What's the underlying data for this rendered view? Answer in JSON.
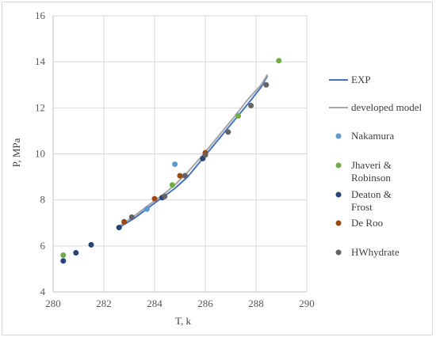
{
  "chart_data": {
    "type": "scatter",
    "title": "",
    "xlabel": "T, k",
    "ylabel": "P, MPa",
    "xlim": [
      280,
      290
    ],
    "ylim": [
      4,
      16
    ],
    "xticks": [
      "280",
      "282",
      "284",
      "286",
      "288",
      "290"
    ],
    "yticks": [
      "4",
      "6",
      "8",
      "10",
      "12",
      "14",
      "16"
    ],
    "grid": true,
    "legend_position": "right",
    "series": [
      {
        "name": "EXP",
        "kind": "line",
        "color": "#4472c4",
        "x": [
          282.6,
          283.2,
          283.8,
          284.3,
          284.8,
          285.3,
          285.9,
          286.5,
          287.1,
          287.7,
          288.2,
          288.45
        ],
        "y": [
          6.8,
          7.2,
          7.7,
          8.1,
          8.5,
          9.0,
          9.8,
          10.6,
          11.4,
          12.2,
          12.9,
          13.4
        ]
      },
      {
        "name": "developed model",
        "kind": "line",
        "color": "#a5a5a5",
        "x": [
          282.6,
          283.2,
          283.8,
          284.3,
          284.8,
          285.3,
          285.9,
          286.5,
          287.1,
          287.7,
          288.2,
          288.45
        ],
        "y": [
          6.85,
          7.3,
          7.8,
          8.2,
          8.65,
          9.2,
          9.95,
          10.75,
          11.55,
          12.4,
          13.0,
          13.45
        ]
      },
      {
        "name": "Nakamura",
        "kind": "scatter",
        "color": "#5b9bd5",
        "x": [
          283.7,
          284.8
        ],
        "y": [
          7.6,
          9.55
        ]
      },
      {
        "name": "Jhaveri & Robinson",
        "kind": "scatter",
        "color": "#70ad47",
        "x": [
          280.4,
          284.7,
          287.3,
          288.9
        ],
        "y": [
          5.6,
          8.65,
          11.65,
          14.05
        ]
      },
      {
        "name": "Deaton & Frost",
        "kind": "scatter",
        "color": "#264478",
        "x": [
          280.4,
          280.9,
          281.5,
          282.6,
          284.3,
          285.9
        ],
        "y": [
          5.35,
          5.7,
          6.05,
          6.8,
          8.1,
          9.8
        ]
      },
      {
        "name": "De Roo",
        "kind": "scatter",
        "color": "#9e480e",
        "x": [
          282.8,
          284.0,
          285.0,
          286.0
        ],
        "y": [
          7.05,
          8.05,
          9.05,
          10.05
        ]
      },
      {
        "name": "HWhydrate",
        "kind": "scatter",
        "color": "#636363",
        "x": [
          283.1,
          284.4,
          285.2,
          286.0,
          286.9,
          287.8,
          288.4
        ],
        "y": [
          7.25,
          8.15,
          9.05,
          9.95,
          10.95,
          12.1,
          13.0
        ]
      }
    ]
  },
  "legend_labels": {
    "exp": "EXP",
    "developed_model": "developed model",
    "nakamura": "Nakamura",
    "jhaveri_line1": "Jhaveri &",
    "jhaveri_line2": "Robinson",
    "deaton_line1": "Deaton &",
    "deaton_line2": "Frost",
    "deroo": "De Roo",
    "hwhydrate": "HWhydrate"
  }
}
